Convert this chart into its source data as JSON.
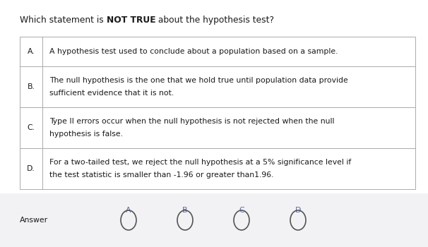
{
  "title_plain": "Which statement is ",
  "title_bold": "NOT TRUE",
  "title_rest": " about the hypothesis test?",
  "rows": [
    {
      "letter": "A.",
      "text": "A hypothesis test used to conclude about a population based on a sample."
    },
    {
      "letter": "B.",
      "text": "The null hypothesis is the one that we hold true until population data provide\nsufficient evidence that it is not."
    },
    {
      "letter": "C.",
      "text": "Type II errors occur when the null hypothesis is not rejected when the null\nhypothesis is false."
    },
    {
      "letter": "D.",
      "text": "For a two-tailed test, we reject the null hypothesis at a 5% significance level if\nthe test statistic is smaller than -1.96 or greater than1.96."
    }
  ],
  "options": [
    "A",
    "B",
    "C",
    "D"
  ],
  "answer_label": "Answer",
  "bg_color": "#ffffff",
  "table_border_color": "#aaaaaa",
  "answer_bg_color": "#f2f2f5",
  "text_color": "#1a1a1a",
  "option_color": "#5566aa",
  "font_size": 7.8,
  "title_font_size": 8.8,
  "figw": 6.06,
  "figh": 3.5,
  "dpi": 100
}
